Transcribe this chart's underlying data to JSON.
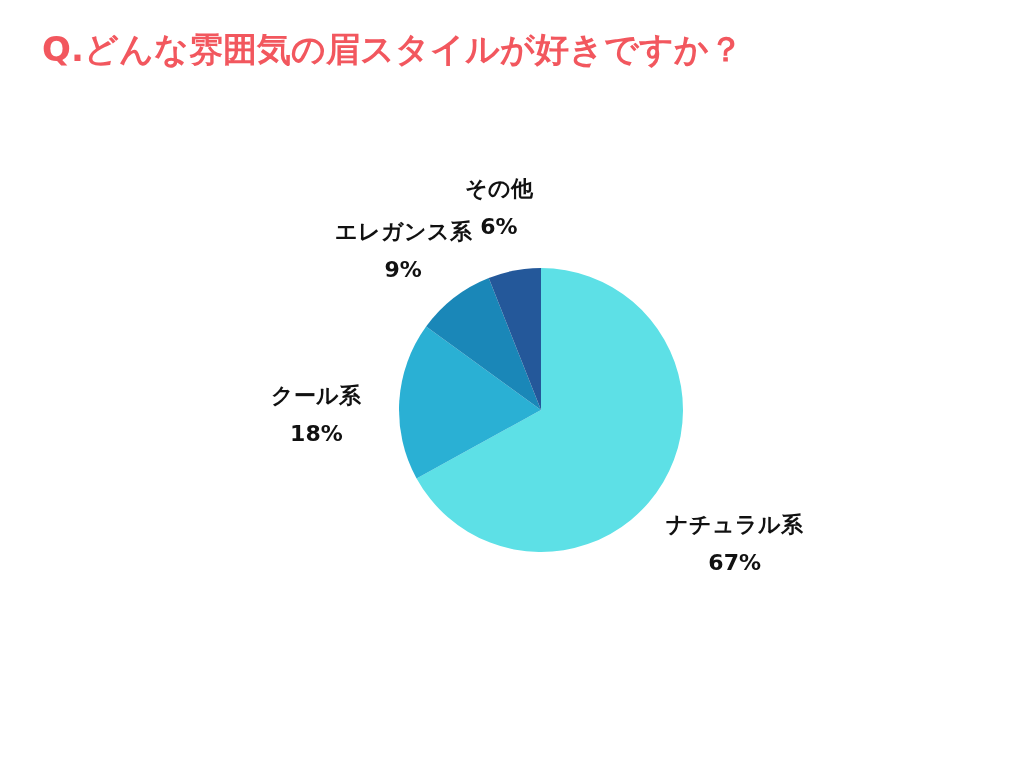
{
  "chart_data": {
    "type": "pie",
    "title": "Q.どんな雰囲気の眉スタイルが好きですか？",
    "categories": [
      "ナチュラル系",
      "クール系",
      "エレガンス系",
      "その他"
    ],
    "values": [
      67,
      18,
      9,
      6
    ],
    "value_labels": [
      "67%",
      "18%",
      "9%",
      "6%"
    ],
    "colors": [
      "#5de0e6",
      "#2ab0d4",
      "#1a87b8",
      "#24589a"
    ],
    "legend": false
  }
}
